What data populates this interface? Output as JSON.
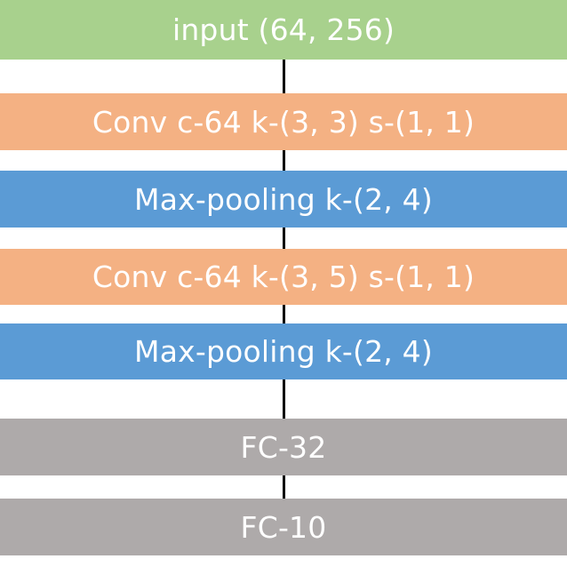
{
  "colors": {
    "input": "#a8d18d",
    "conv": "#f4b183",
    "pool": "#5b9bd5",
    "fc": "#aeaaaa",
    "connector": "#000000",
    "text": "#ffffff"
  },
  "layers": [
    {
      "label": "input (64, 256)",
      "kind": "input"
    },
    {
      "label": "Conv c-64 k-(3, 3) s-(1, 1)",
      "kind": "conv"
    },
    {
      "label": "Max-pooling k-(2, 4)",
      "kind": "pool"
    },
    {
      "label": "Conv c-64 k-(3, 5) s-(1, 1)",
      "kind": "conv"
    },
    {
      "label": "Max-pooling k-(2, 4)",
      "kind": "pool"
    },
    {
      "label": "FC-32",
      "kind": "fc"
    },
    {
      "label": "FC-10",
      "kind": "fc"
    }
  ]
}
